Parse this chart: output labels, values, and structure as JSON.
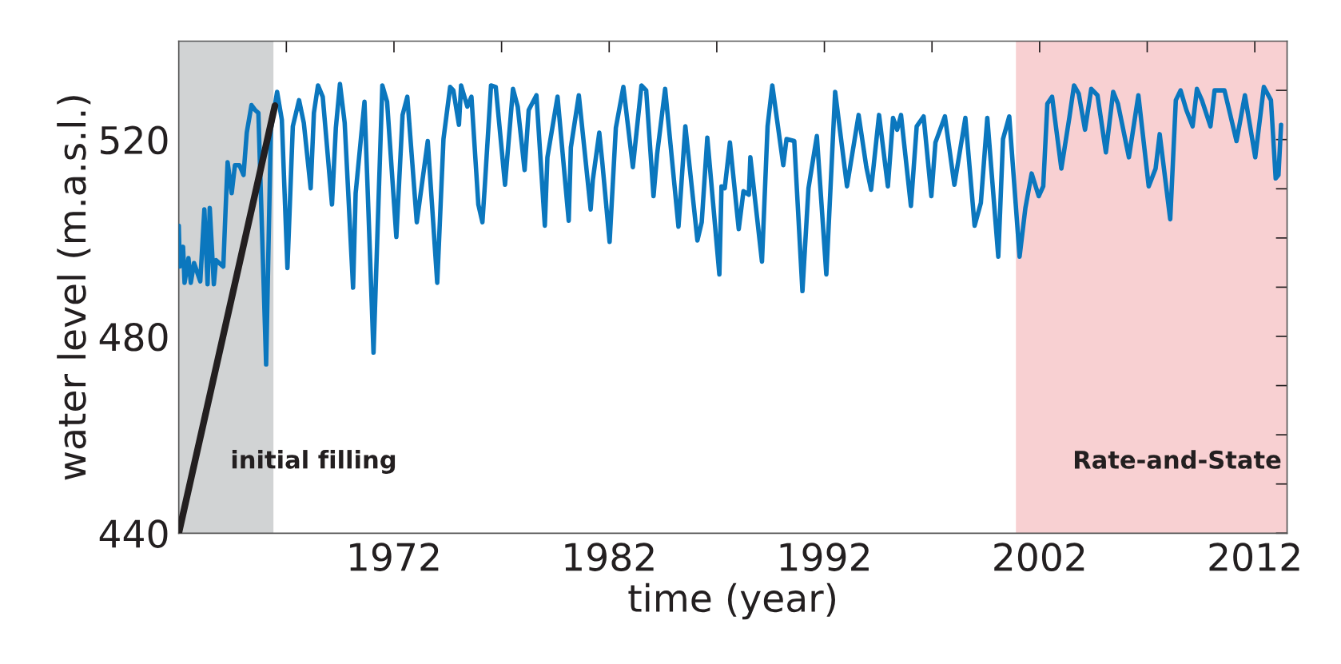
{
  "chart_data": {
    "type": "line",
    "xlabel": "time (year)",
    "ylabel": "water level (m.a.s.l.)",
    "xlim": [
      1962,
      2013.5
    ],
    "ylim": [
      440,
      540
    ],
    "xticks": [
      {
        "value": 1967,
        "label": null
      },
      1972,
      {
        "value": 1977,
        "label": null
      },
      1982,
      {
        "value": 1987,
        "label": null
      },
      1992,
      {
        "value": 1997,
        "label": null
      },
      2002,
      {
        "value": 2007,
        "label": null
      },
      2012
    ],
    "yticks": [
      440,
      {
        "value": 450,
        "label": null
      },
      {
        "value": 460,
        "label": null
      },
      {
        "value": 470,
        "label": null
      },
      480,
      {
        "value": 490,
        "label": null
      },
      {
        "value": 500,
        "label": null
      },
      {
        "value": 510,
        "label": null
      },
      520,
      {
        "value": 530,
        "label": null
      }
    ],
    "grid": false,
    "legend": false,
    "line_style": "solid",
    "bands": [
      {
        "axis": "x",
        "from": 1962,
        "to": 1966.4,
        "label": "initial filling",
        "color": "#d1d3d4"
      },
      {
        "axis": "x",
        "from": 2000.9,
        "to": 2013.5,
        "label": "Rate-and-State",
        "color": "#f8d0d2"
      }
    ],
    "series": [
      {
        "color": "#0b77be",
        "x": [
          1962.0,
          1962.05,
          1962.2,
          1962.27,
          1962.45,
          1962.56,
          1962.71,
          1963.0,
          1963.19,
          1963.34,
          1963.44,
          1963.63,
          1963.73,
          1964.07,
          1964.17,
          1964.27,
          1964.46,
          1964.61,
          1964.82,
          1965.01,
          1965.16,
          1965.38,
          1965.55,
          1965.7,
          1966.06,
          1966.28,
          1966.57,
          1966.79,
          1967.05,
          1967.3,
          1967.59,
          1967.81,
          1968.13,
          1968.28,
          1968.47,
          1968.69,
          1969.12,
          1969.3,
          1969.49,
          1969.71,
          1970.1,
          1970.22,
          1970.63,
          1971.05,
          1971.46,
          1971.68,
          1972.11,
          1972.4,
          1972.62,
          1973.06,
          1973.57,
          1974.01,
          1974.3,
          1974.61,
          1974.76,
          1975.02,
          1975.12,
          1975.41,
          1975.6,
          1975.92,
          1976.11,
          1976.22,
          1976.51,
          1976.73,
          1977.16,
          1977.53,
          1977.75,
          1978.07,
          1978.26,
          1978.62,
          1979.01,
          1979.13,
          1979.6,
          1980.12,
          1980.22,
          1980.59,
          1981.14,
          1981.24,
          1981.54,
          1981.68,
          1982.02,
          1982.31,
          1982.66,
          1983.1,
          1983.5,
          1983.72,
          1984.06,
          1984.23,
          1984.6,
          1985.22,
          1985.54,
          1986.1,
          1986.3,
          1986.56,
          1987.12,
          1987.22,
          1987.37,
          1987.61,
          1988.02,
          1988.24,
          1988.49,
          1988.56,
          1989.1,
          1989.36,
          1989.58,
          1990.09,
          1990.24,
          1990.6,
          1990.98,
          1991.26,
          1991.65,
          1992.09,
          1992.5,
          1993.05,
          1993.59,
          1993.95,
          1994.17,
          1994.54,
          1994.95,
          1995.19,
          1995.38,
          1995.56,
          1996.02,
          1996.29,
          1996.61,
          1996.97,
          1997.16,
          1997.6,
          1998.04,
          1998.55,
          1998.98,
          1999.27,
          1999.57,
          2000.08,
          2000.3,
          2000.59,
          2001.07,
          2001.34,
          2001.63,
          2001.96,
          2002.17,
          2002.36,
          2002.58,
          2003.01,
          2003.38,
          2003.6,
          2003.82,
          2004.11,
          2004.4,
          2004.69,
          2005.08,
          2005.42,
          2005.64,
          2006.15,
          2006.59,
          2007.07,
          2007.39,
          2007.58,
          2008.07,
          2008.33,
          2008.55,
          2008.82,
          2009.11,
          2009.31,
          2009.54,
          2009.94,
          2010.13,
          2010.59,
          2011.15,
          2011.54,
          2012.02,
          2012.42,
          2012.75,
          2012.97,
          2013.1,
          2013.22
        ],
        "values": [
          502.5,
          494.2,
          498.2,
          490.9,
          495.9,
          490.9,
          494.9,
          491.2,
          505.8,
          490.6,
          506.1,
          490.6,
          495.5,
          494.2,
          505.1,
          515.4,
          509.1,
          514.8,
          514.8,
          512.8,
          521.4,
          527.0,
          526.0,
          525.4,
          474.3,
          522.0,
          529.7,
          524.0,
          493.9,
          522.7,
          528.0,
          523.4,
          510.1,
          525.4,
          531.0,
          528.7,
          506.8,
          522.4,
          531.3,
          523.4,
          489.9,
          509.1,
          527.7,
          476.7,
          531.0,
          527.7,
          500.2,
          525.0,
          528.7,
          503.2,
          519.7,
          490.9,
          520.1,
          530.7,
          530.0,
          523.0,
          531.0,
          526.7,
          528.7,
          506.8,
          503.2,
          510.5,
          531.0,
          530.7,
          510.8,
          530.3,
          526.7,
          513.8,
          526.0,
          529.0,
          502.5,
          516.4,
          528.7,
          503.5,
          518.4,
          529.0,
          505.8,
          511.8,
          521.4,
          515.4,
          499.2,
          522.4,
          530.7,
          514.4,
          531.0,
          530.0,
          508.5,
          517.1,
          530.3,
          502.3,
          522.7,
          499.5,
          503.2,
          520.4,
          492.6,
          510.5,
          510.1,
          519.4,
          501.8,
          509.5,
          508.8,
          516.4,
          495.2,
          522.7,
          531.0,
          514.8,
          520.1,
          519.7,
          489.2,
          510.1,
          520.7,
          492.6,
          529.7,
          510.5,
          525.0,
          514.4,
          509.8,
          525.0,
          510.5,
          524.4,
          522.0,
          525.0,
          506.5,
          522.7,
          524.7,
          508.5,
          519.4,
          524.7,
          510.8,
          524.4,
          502.5,
          507.1,
          524.4,
          496.2,
          520.1,
          524.7,
          496.2,
          506.1,
          513.1,
          508.5,
          510.5,
          527.3,
          528.7,
          514.1,
          524.4,
          531.0,
          529.3,
          522.0,
          530.3,
          529.0,
          517.4,
          529.7,
          527.3,
          516.4,
          529.0,
          510.5,
          514.1,
          521.1,
          503.8,
          528.0,
          530.0,
          526.0,
          522.7,
          530.3,
          528.0,
          522.7,
          530.0,
          530.0,
          519.7,
          529.0,
          516.4,
          530.7,
          528.0,
          512.1,
          512.8,
          523.0
        ]
      },
      {
        "color": "#231f20",
        "x": [
          1962,
          1966.47
        ],
        "values": [
          440,
          526.9
        ]
      }
    ]
  }
}
